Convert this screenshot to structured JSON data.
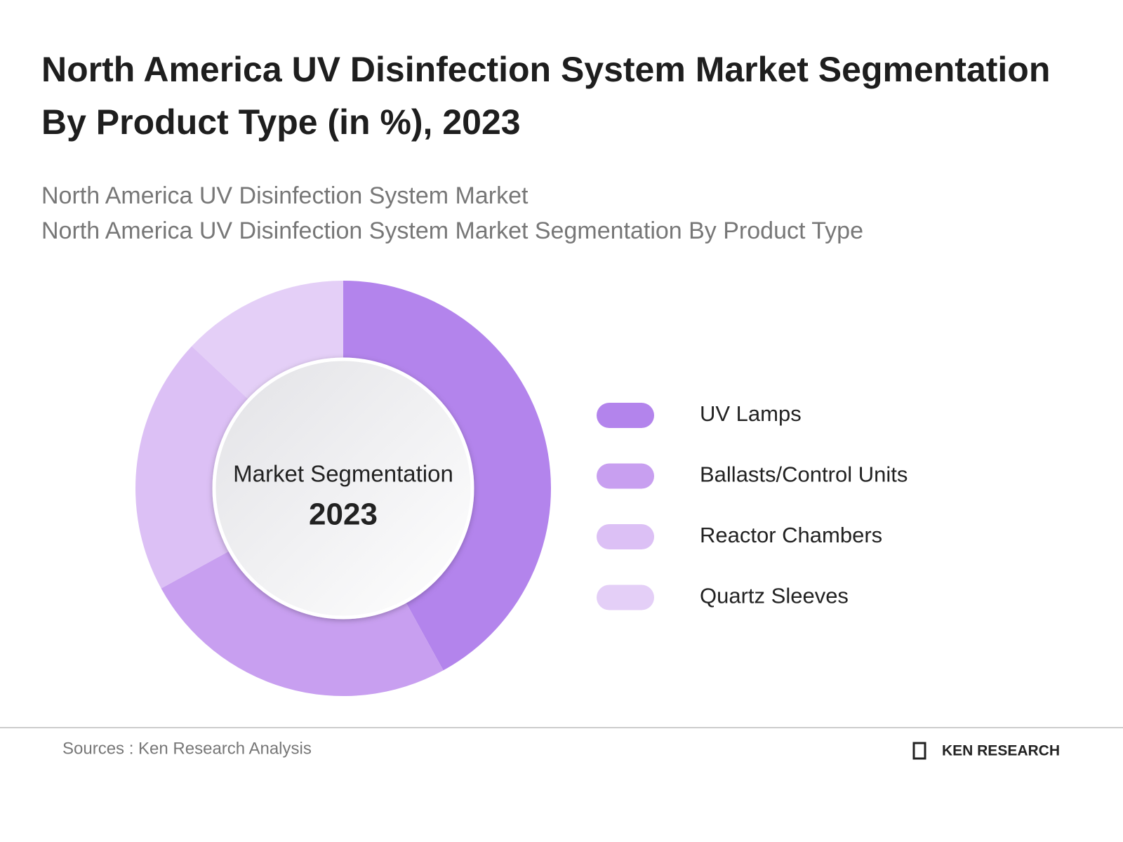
{
  "chart_data": {
    "type": "donut",
    "title": "North America UV Disinfection System Market Segmentation By Product Type (in %), 2023",
    "subtitles": [
      "North America UV Disinfection System Market",
      "North America UV Disinfection System Market Segmentation By Product Type"
    ],
    "center_label": "Market Segmentation",
    "center_year": "2023",
    "categories": [
      "UV Lamps",
      "Ballasts/Control Units",
      "Reactor Chambers",
      "Quartz Sleeves"
    ],
    "values": [
      42,
      25,
      20,
      13
    ],
    "colors": [
      "#b384ec",
      "#c89ff0",
      "#dcc0f5",
      "#e4cff7"
    ],
    "source": "Sources : Ken Research Analysis",
    "brand": "KEN RESEARCH"
  }
}
